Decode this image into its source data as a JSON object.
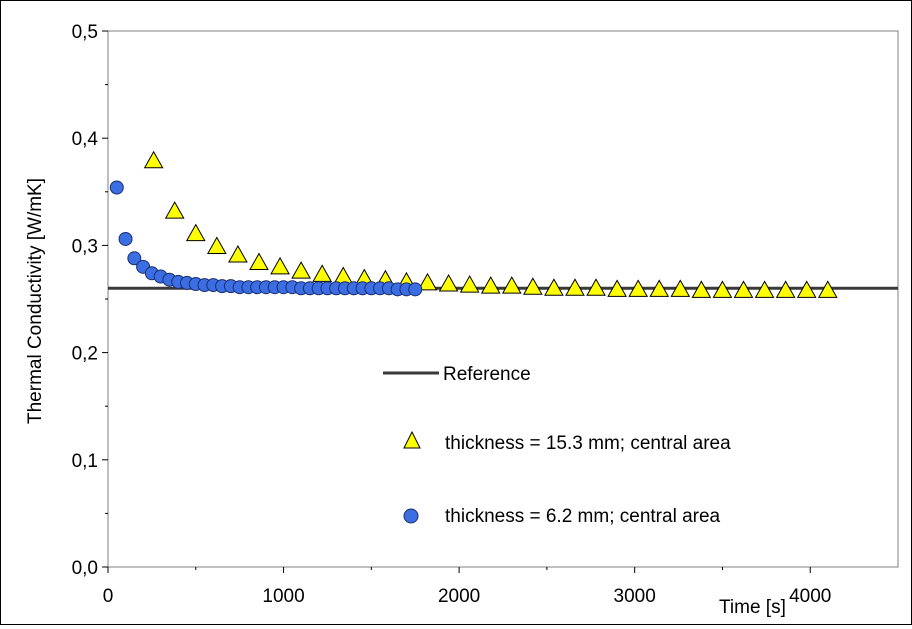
{
  "chart_data": {
    "type": "scatter",
    "title": "",
    "xlabel": "Time [s]",
    "ylabel": "Thermal Conductivity [W/mK]",
    "xlim": [
      0,
      4500
    ],
    "ylim": [
      0,
      0.5
    ],
    "x_ticks": [
      "0",
      "1000",
      "2000",
      "3000",
      "4000"
    ],
    "x_tick_values": [
      0,
      1000,
      2000,
      3000,
      4000
    ],
    "y_ticks": [
      "0,0",
      "0,1",
      "0,2",
      "0,3",
      "0,4",
      "0,5"
    ],
    "y_tick_values": [
      0,
      0.1,
      0.2,
      0.3,
      0.4,
      0.5
    ],
    "grid": false,
    "legend_position": "center-right",
    "reference": {
      "name": "Reference",
      "y": 0.26,
      "color": "#3a3a3a"
    },
    "series": [
      {
        "name": "thickness = 15.3 mm; central area",
        "marker": "triangle",
        "color": "#ffff00",
        "x": [
          260,
          380,
          500,
          620,
          740,
          860,
          980,
          1100,
          1220,
          1340,
          1460,
          1580,
          1700,
          1820,
          1940,
          2060,
          2180,
          2300,
          2420,
          2540,
          2660,
          2780,
          2900,
          3020,
          3140,
          3260,
          3380,
          3500,
          3620,
          3740,
          3860,
          3980,
          4100
        ],
        "y": [
          0.379,
          0.332,
          0.311,
          0.299,
          0.291,
          0.284,
          0.28,
          0.276,
          0.273,
          0.271,
          0.269,
          0.268,
          0.266,
          0.265,
          0.264,
          0.263,
          0.262,
          0.262,
          0.261,
          0.26,
          0.26,
          0.26,
          0.259,
          0.259,
          0.259,
          0.259,
          0.258,
          0.258,
          0.258,
          0.258,
          0.258,
          0.258,
          0.258
        ]
      },
      {
        "name": "thickness = 6.2 mm; central area",
        "marker": "circle",
        "color": "#3b6ee3",
        "x": [
          50,
          100,
          150,
          200,
          250,
          300,
          350,
          400,
          450,
          500,
          550,
          600,
          650,
          700,
          750,
          800,
          850,
          900,
          950,
          1000,
          1050,
          1100,
          1150,
          1200,
          1250,
          1300,
          1350,
          1400,
          1450,
          1500,
          1550,
          1600,
          1650,
          1700,
          1750
        ],
        "y": [
          0.354,
          0.306,
          0.288,
          0.28,
          0.274,
          0.271,
          0.268,
          0.266,
          0.265,
          0.264,
          0.263,
          0.263,
          0.262,
          0.262,
          0.261,
          0.261,
          0.261,
          0.261,
          0.261,
          0.261,
          0.261,
          0.26,
          0.26,
          0.26,
          0.26,
          0.26,
          0.26,
          0.26,
          0.26,
          0.26,
          0.26,
          0.26,
          0.259,
          0.259,
          0.259
        ]
      }
    ]
  }
}
